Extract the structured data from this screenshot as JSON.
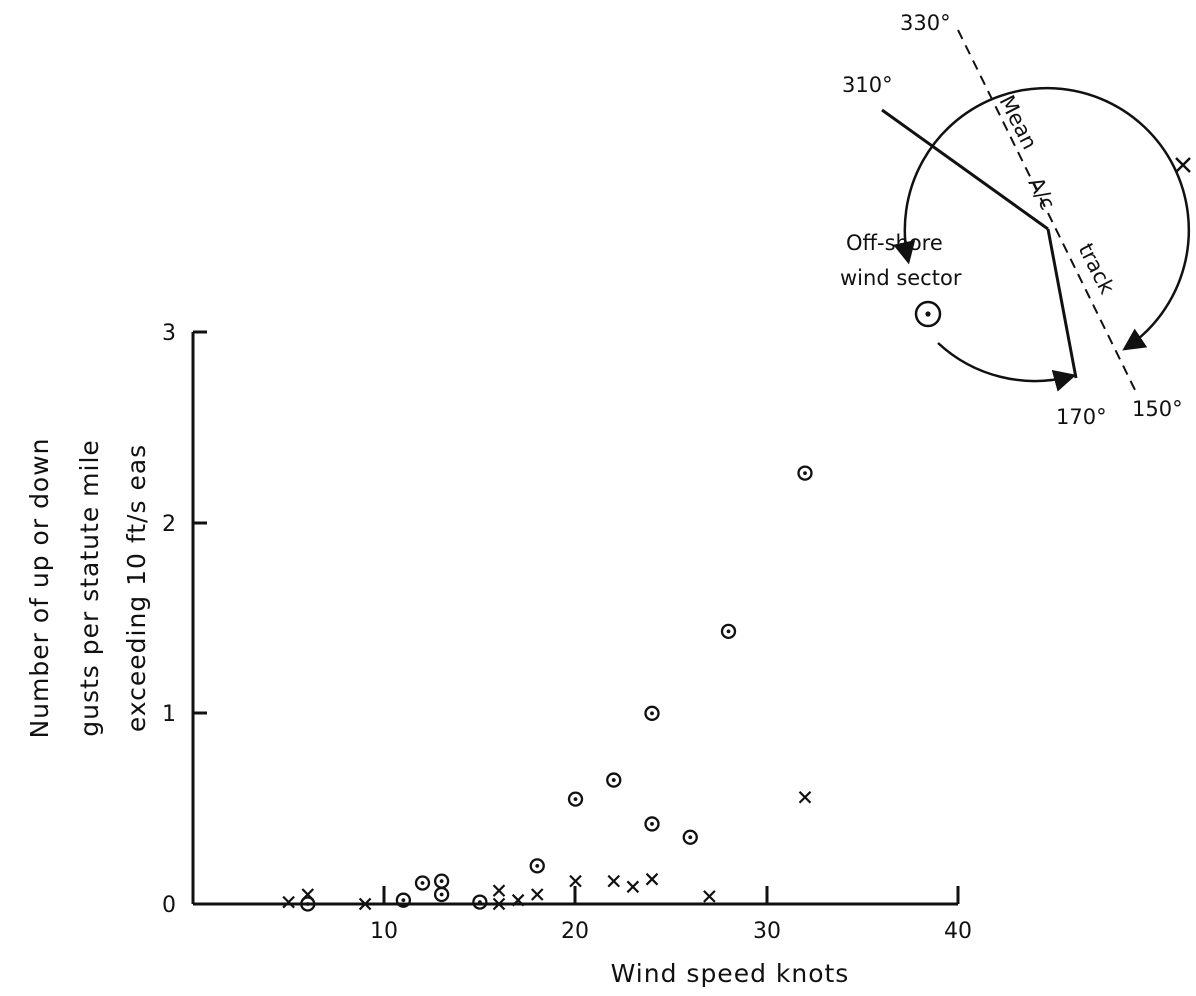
{
  "chart_data": {
    "type": "scatter",
    "xlabel": "Wind speed knots",
    "ylabel_lines": [
      "Number of up or down",
      "gusts per statute mile",
      "exceeding 10 ft/s eas"
    ],
    "xlim": [
      0,
      40
    ],
    "ylim": [
      0,
      3
    ],
    "x_ticks": [
      10,
      20,
      30,
      40
    ],
    "y_ticks": [
      0,
      1,
      2,
      3
    ],
    "x_tick_labels": [
      "10",
      "20",
      "30",
      "40"
    ],
    "y_tick_labels": [
      "0",
      "1",
      "2",
      "3"
    ],
    "grid": false,
    "series": [
      {
        "marker": "circle-dot",
        "points": [
          {
            "x": 6,
            "y": 0.0
          },
          {
            "x": 11,
            "y": 0.02
          },
          {
            "x": 12,
            "y": 0.11
          },
          {
            "x": 13,
            "y": 0.12
          },
          {
            "x": 13,
            "y": 0.05
          },
          {
            "x": 15,
            "y": 0.01
          },
          {
            "x": 18,
            "y": 0.2
          },
          {
            "x": 20,
            "y": 0.55
          },
          {
            "x": 22,
            "y": 0.65
          },
          {
            "x": 24,
            "y": 1.0
          },
          {
            "x": 24,
            "y": 0.42
          },
          {
            "x": 26,
            "y": 0.35
          },
          {
            "x": 28,
            "y": 1.43
          },
          {
            "x": 32,
            "y": 2.26
          }
        ]
      },
      {
        "marker": "cross",
        "points": [
          {
            "x": 5,
            "y": 0.01
          },
          {
            "x": 6,
            "y": 0.05
          },
          {
            "x": 9,
            "y": 0.0
          },
          {
            "x": 16,
            "y": 0.0
          },
          {
            "x": 16,
            "y": 0.07
          },
          {
            "x": 17,
            "y": 0.02
          },
          {
            "x": 18,
            "y": 0.05
          },
          {
            "x": 20,
            "y": 0.12
          },
          {
            "x": 22,
            "y": 0.12
          },
          {
            "x": 23,
            "y": 0.09
          },
          {
            "x": 24,
            "y": 0.13
          },
          {
            "x": 27,
            "y": 0.04
          },
          {
            "x": 32,
            "y": 0.56
          }
        ]
      }
    ],
    "inset": {
      "labels": {
        "deg_330": "330°",
        "deg_310": "310°",
        "deg_170": "170°",
        "deg_150": "150°",
        "mean": "Mean",
        "ac": "A/c",
        "track": "track",
        "offshore_line1": "Off-shore",
        "offshore_line2": "wind sector"
      },
      "circle_marker": "circle-dot",
      "cross_marker": "cross"
    }
  }
}
